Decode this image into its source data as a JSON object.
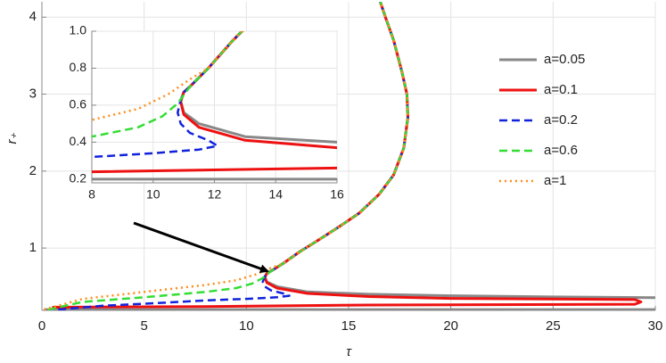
{
  "chart_data": {
    "type": "line",
    "x_label": "τ",
    "y_label": "r₊",
    "xlim": [
      0,
      30
    ],
    "ylim": [
      0.19,
      4.2
    ],
    "xticks": [
      0,
      5,
      10,
      15,
      20,
      25,
      30
    ],
    "yticks": [
      1,
      2,
      3,
      4
    ],
    "grid": true,
    "legend": "right",
    "inset": {
      "xlim": [
        8,
        16
      ],
      "ylim": [
        0.18,
        1.0
      ],
      "xticks": [
        8,
        10,
        12,
        14,
        16
      ],
      "yticks": [
        0.2,
        0.4,
        0.6,
        0.8,
        {
          "value": 1,
          "label": "1.0"
        }
      ],
      "grid": true
    },
    "series": [
      {
        "name": "a=0.05",
        "color": "#888888",
        "dash": "solid",
        "x": [
          0.1,
          30,
          null,
          30,
          25,
          20,
          16,
          13,
          11.5,
          11,
          10.9,
          11.0,
          11.2,
          11.8,
          12.6,
          13.5,
          14.5,
          15.5,
          16.5,
          17.2,
          17.7,
          17.9,
          17.85,
          17.6,
          17.2,
          16.8,
          16.55
        ],
        "values": [
          0.2,
          0.2,
          null,
          0.355,
          0.365,
          0.38,
          0.4,
          0.43,
          0.5,
          0.56,
          0.62,
          0.67,
          0.7,
          0.8,
          0.95,
          1.1,
          1.27,
          1.45,
          1.7,
          1.95,
          2.3,
          2.7,
          3.0,
          3.3,
          3.7,
          4.0,
          4.2
        ]
      },
      {
        "name": "a=0.1",
        "color": "#ee1111",
        "dash": "solid",
        "x": [
          0.5,
          8,
          16,
          29,
          29.3,
          29,
          20,
          16,
          13,
          11.5,
          11,
          10.9,
          11.0,
          11.2,
          11.8,
          12.6,
          13.5,
          14.5,
          15.5,
          16.5,
          17.2,
          17.7,
          17.9,
          17.85,
          17.6,
          17.2,
          16.8,
          16.55
        ],
        "values": [
          0.23,
          0.24,
          0.26,
          0.27,
          0.3,
          0.33,
          0.345,
          0.37,
          0.41,
          0.48,
          0.55,
          0.62,
          0.67,
          0.7,
          0.8,
          0.95,
          1.1,
          1.27,
          1.45,
          1.7,
          1.95,
          2.3,
          2.7,
          3.0,
          3.3,
          3.7,
          4.0,
          4.2
        ]
      },
      {
        "name": "a=0.2",
        "color": "#1122dd",
        "dash": "dashed",
        "x": [
          0.8,
          3,
          6,
          8,
          10,
          11.5,
          12.1,
          11.8,
          11.2,
          10.9,
          10.8,
          10.9,
          11.0,
          11.2,
          11.8,
          12.6,
          13.5,
          14.5,
          15.5,
          16.5,
          17.2,
          17.7,
          17.9,
          17.85,
          17.6,
          17.2,
          16.8,
          16.55
        ],
        "values": [
          0.2,
          0.25,
          0.29,
          0.32,
          0.34,
          0.36,
          0.38,
          0.41,
          0.45,
          0.5,
          0.56,
          0.63,
          0.67,
          0.7,
          0.8,
          0.95,
          1.1,
          1.27,
          1.45,
          1.7,
          1.95,
          2.3,
          2.7,
          3.0,
          3.3,
          3.7,
          4.0,
          4.2
        ]
      },
      {
        "name": "a=0.6",
        "color": "#33dd33",
        "dash": "dashed",
        "x": [
          0.3,
          2,
          5,
          8,
          9.5,
          10.3,
          10.8,
          11.2,
          11.8,
          12.6,
          13.5,
          14.5,
          15.5,
          16.5,
          17.2,
          17.7,
          17.9,
          17.85,
          17.6,
          17.2,
          16.8,
          16.55
        ],
        "values": [
          0.2,
          0.3,
          0.36,
          0.43,
          0.48,
          0.54,
          0.61,
          0.7,
          0.8,
          0.95,
          1.1,
          1.27,
          1.45,
          1.7,
          1.95,
          2.3,
          2.7,
          3.0,
          3.3,
          3.7,
          4.0,
          4.2
        ]
      },
      {
        "name": "a=1",
        "color": "#ff8c1a",
        "dash": "dotted",
        "x": [
          0.1,
          2,
          5,
          8,
          9.5,
          10.5,
          11.2,
          11.8,
          12.6,
          13.5,
          14.5,
          15.5,
          16.5,
          17.2,
          17.7,
          17.9,
          17.85,
          17.6,
          17.2,
          16.8,
          16.55
        ],
        "values": [
          0.2,
          0.34,
          0.43,
          0.52,
          0.58,
          0.66,
          0.74,
          0.8,
          0.95,
          1.1,
          1.27,
          1.45,
          1.7,
          1.95,
          2.3,
          2.7,
          3.0,
          3.3,
          3.7,
          4.0,
          4.2
        ]
      }
    ]
  }
}
